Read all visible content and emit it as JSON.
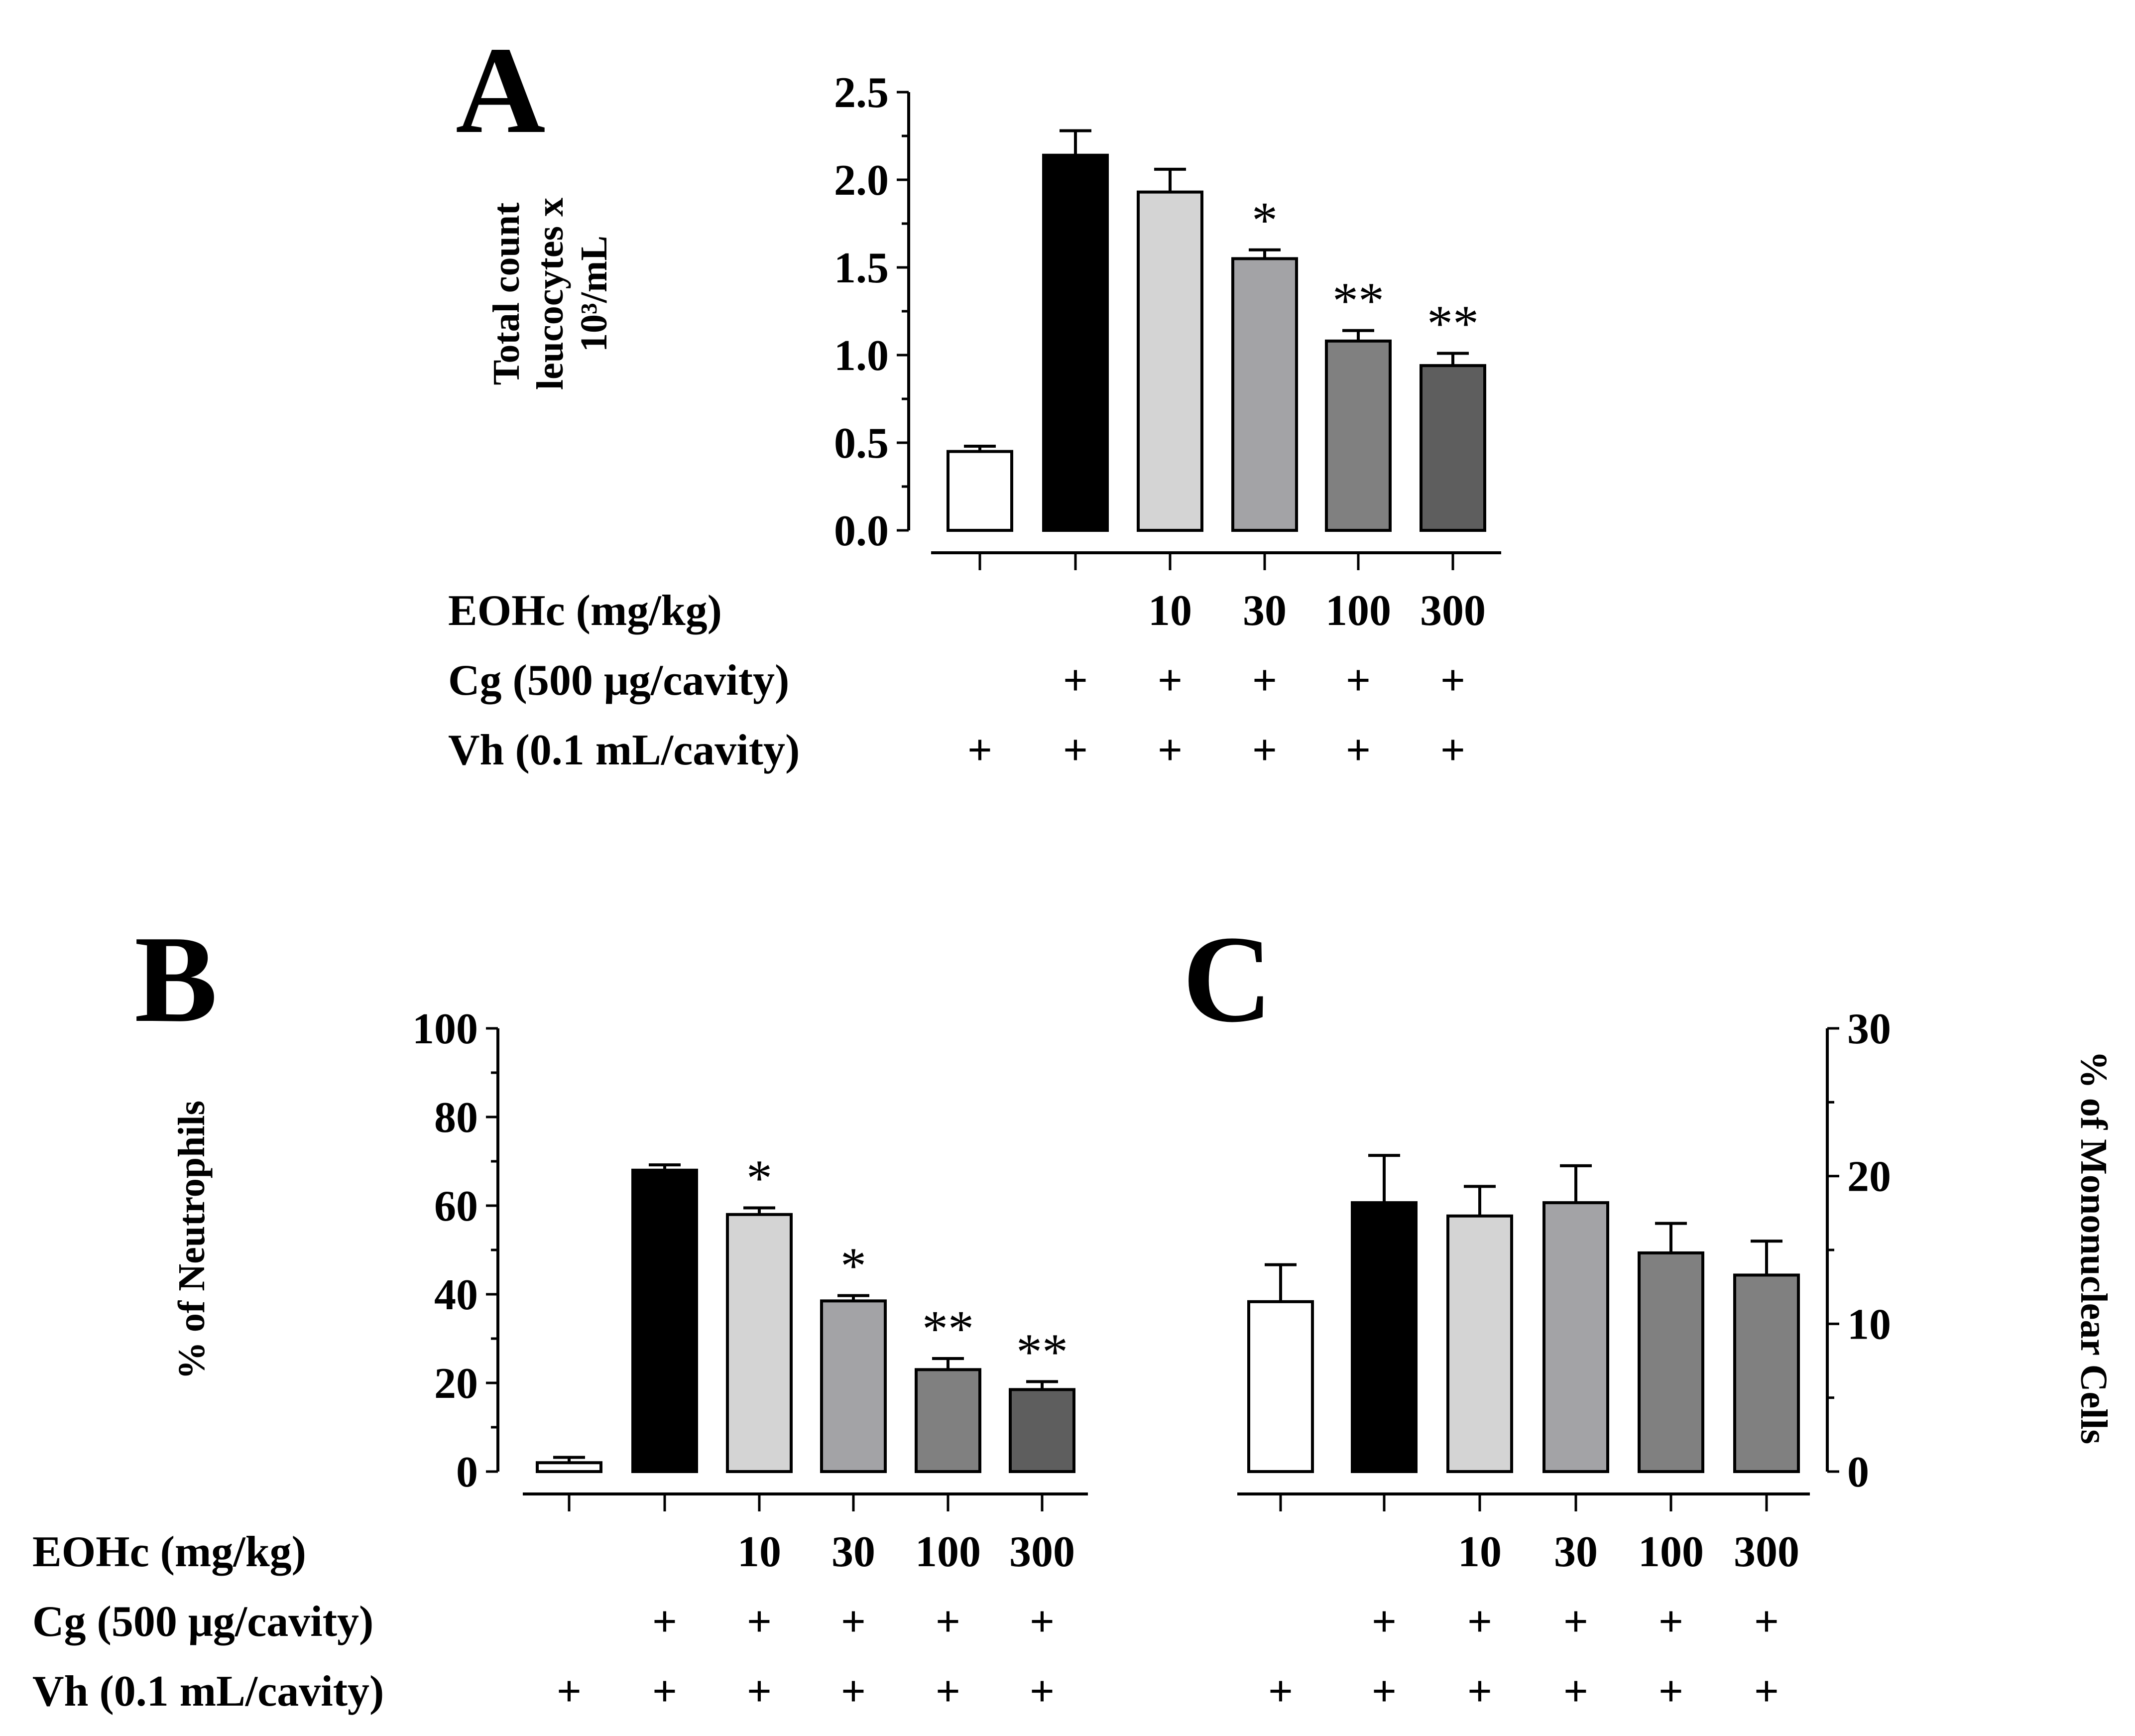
{
  "chart_data": [
    {
      "type": "bar",
      "panel": "A",
      "ylabel": [
        "Total count",
        "leucocytes x",
        "10³/mL"
      ],
      "ylim": [
        0,
        2.5
      ],
      "yticks": [
        "0.0",
        "0.5",
        "1.0",
        "1.5",
        "2.0",
        "2.5"
      ],
      "categories": [
        "Vh",
        "Cg",
        "EOHc 10",
        "EOHc 30",
        "EOHc 100",
        "EOHc 300"
      ],
      "values": [
        0.45,
        2.14,
        1.93,
        1.55,
        1.08,
        0.94
      ],
      "errors": [
        0.03,
        0.14,
        0.13,
        0.05,
        0.06,
        0.07
      ],
      "significance": [
        "",
        "",
        "",
        "*",
        "**",
        "**"
      ],
      "colors": [
        "#ffffff",
        "#000000",
        "#d4d4d4",
        "#a3a3a6",
        "#808080",
        "#5e5e5e"
      ],
      "y_axis_side": "left"
    },
    {
      "type": "bar",
      "panel": "B",
      "ylabel": [
        "% of Neutrophils"
      ],
      "ylim": [
        0,
        100
      ],
      "yticks": [
        "0",
        "20",
        "40",
        "60",
        "80",
        "100"
      ],
      "categories": [
        "Vh",
        "Cg",
        "EOHc 10",
        "EOHc 30",
        "EOHc 100",
        "EOHc 300"
      ],
      "values": [
        2,
        68,
        58,
        38.5,
        23,
        18.5
      ],
      "errors": [
        1.2,
        1.2,
        1.5,
        1.2,
        2.5,
        1.8
      ],
      "significance": [
        "",
        "",
        "*",
        "*",
        "**",
        "**"
      ],
      "colors": [
        "#ffffff",
        "#000000",
        "#d4d4d4",
        "#a3a3a6",
        "#808080",
        "#5e5e5e"
      ],
      "y_axis_side": "left"
    },
    {
      "type": "bar",
      "panel": "C",
      "ylabel": [
        "% of Mononuclear Cells"
      ],
      "ylim": [
        0,
        30
      ],
      "yticks": [
        "0",
        "10",
        "20",
        "30"
      ],
      "categories": [
        "Vh",
        "Cg",
        "EOHc 10",
        "EOHc 30",
        "EOHc 100",
        "EOHc 300"
      ],
      "values": [
        11.5,
        18.2,
        17.3,
        18.2,
        14.8,
        13.3
      ],
      "errors": [
        2.5,
        3.2,
        2.0,
        2.5,
        2.0,
        2.3
      ],
      "significance": [
        "",
        "",
        "",
        "",
        "",
        ""
      ],
      "colors": [
        "#ffffff",
        "#000000",
        "#d4d4d4",
        "#a3a3a6",
        "#808080",
        "#808080"
      ],
      "y_axis_side": "right"
    }
  ],
  "treatment_table": {
    "rows": [
      {
        "label": "EOHc (mg/kg)",
        "values": [
          "",
          "",
          "10",
          "30",
          "100",
          "300"
        ]
      },
      {
        "label": "Cg (500 μg/cavity)",
        "values": [
          "",
          "+",
          "+",
          "+",
          "+",
          "+"
        ]
      },
      {
        "label": "Vh (0.1 mL/cavity)",
        "values": [
          "+",
          "+",
          "+",
          "+",
          "+",
          "+"
        ]
      }
    ]
  }
}
